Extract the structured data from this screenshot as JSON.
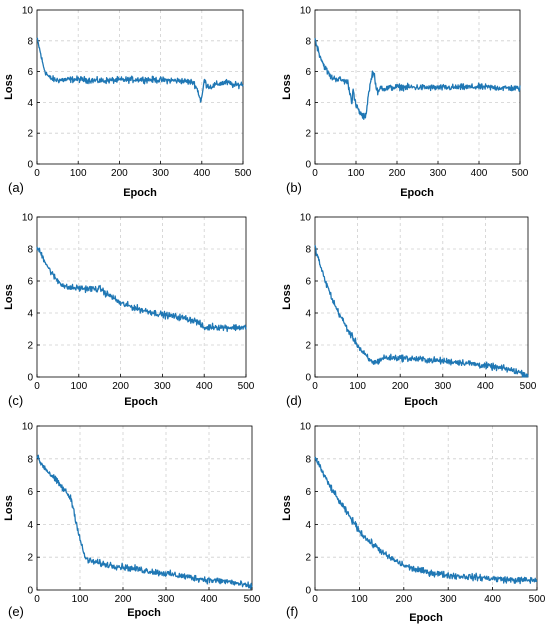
{
  "chart_data": [
    {
      "type": "line",
      "panel_label": "(a)",
      "xlabel": "Epoch",
      "ylabel": "Loss",
      "xlim": [
        0,
        500
      ],
      "ylim": [
        0,
        10
      ],
      "xticks": [
        "0",
        "100",
        "200",
        "300",
        "400",
        "500"
      ],
      "yticks": [
        "0",
        "2",
        "4",
        "6",
        "8",
        "10"
      ],
      "grid": true,
      "color": "#1f77b4",
      "series": [
        {
          "x": [
            0,
            5,
            10,
            15,
            20,
            25,
            30,
            40,
            50,
            100,
            150,
            200,
            250,
            300,
            350,
            380,
            390,
            395,
            398,
            402,
            406,
            410,
            420,
            440,
            460,
            480,
            500
          ],
          "values": [
            8.1,
            7.6,
            7.0,
            6.4,
            6.0,
            5.8,
            5.6,
            5.5,
            5.45,
            5.5,
            5.4,
            5.45,
            5.5,
            5.45,
            5.4,
            5.3,
            4.8,
            4.3,
            4.1,
            4.6,
            5.5,
            5.2,
            5.0,
            5.2,
            5.3,
            5.1,
            5.2
          ]
        }
      ]
    },
    {
      "type": "line",
      "panel_label": "(b)",
      "xlabel": "Epoch",
      "ylabel": "Loss",
      "xlim": [
        0,
        500
      ],
      "ylim": [
        0,
        10
      ],
      "xticks": [
        "0",
        "100",
        "200",
        "300",
        "400",
        "500"
      ],
      "yticks": [
        "0",
        "2",
        "4",
        "6",
        "8",
        "10"
      ],
      "grid": true,
      "color": "#1f77b4",
      "series": [
        {
          "x": [
            0,
            10,
            20,
            30,
            40,
            60,
            80,
            90,
            93,
            96,
            100,
            110,
            120,
            125,
            130,
            140,
            145,
            150,
            155,
            160,
            170,
            200,
            300,
            400,
            500
          ],
          "values": [
            8.1,
            7.2,
            6.5,
            6.0,
            5.6,
            5.5,
            5.3,
            4.0,
            5.0,
            4.2,
            3.8,
            3.3,
            3.0,
            3.3,
            4.5,
            5.9,
            5.8,
            4.8,
            4.6,
            5.0,
            4.9,
            5.0,
            4.95,
            5.0,
            4.9
          ]
        }
      ]
    },
    {
      "type": "line",
      "panel_label": "(c)",
      "xlabel": "Epoch",
      "ylabel": "Loss",
      "xlim": [
        0,
        500
      ],
      "ylim": [
        0,
        10
      ],
      "xticks": [
        "0",
        "100",
        "200",
        "300",
        "400",
        "500"
      ],
      "yticks": [
        "0",
        "2",
        "4",
        "6",
        "8",
        "10"
      ],
      "grid": true,
      "color": "#1f77b4",
      "series": [
        {
          "x": [
            0,
            10,
            20,
            30,
            40,
            50,
            60,
            70,
            100,
            140,
            155,
            160,
            180,
            200,
            250,
            300,
            350,
            380,
            395,
            400,
            420,
            450,
            500
          ],
          "values": [
            8.1,
            7.7,
            7.2,
            6.7,
            6.3,
            6.0,
            5.8,
            5.6,
            5.55,
            5.5,
            5.5,
            5.3,
            5.0,
            4.6,
            4.2,
            3.9,
            3.7,
            3.5,
            3.2,
            3.05,
            3.15,
            3.1,
            3.1
          ]
        }
      ]
    },
    {
      "type": "line",
      "panel_label": "(d)",
      "xlabel": "Epoch",
      "ylabel": "Loss",
      "xlim": [
        0,
        500
      ],
      "ylim": [
        0,
        10
      ],
      "xticks": [
        "0",
        "100",
        "200",
        "300",
        "400",
        "500"
      ],
      "yticks": [
        "0",
        "2",
        "4",
        "6",
        "8",
        "10"
      ],
      "grid": true,
      "color": "#1f77b4",
      "series": [
        {
          "x": [
            0,
            10,
            20,
            30,
            40,
            50,
            60,
            70,
            80,
            90,
            100,
            110,
            120,
            130,
            140,
            150,
            160,
            170,
            200,
            250,
            300,
            350,
            400,
            450,
            480,
            500
          ],
          "values": [
            8.1,
            7.2,
            6.3,
            5.6,
            4.9,
            4.3,
            3.8,
            3.3,
            2.8,
            2.4,
            2.0,
            1.6,
            1.3,
            1.0,
            0.9,
            1.0,
            1.2,
            1.2,
            1.2,
            1.1,
            1.0,
            0.9,
            0.7,
            0.5,
            0.3,
            0.1
          ]
        }
      ]
    },
    {
      "type": "line",
      "panel_label": "(e)",
      "xlabel": "Epoch",
      "ylabel": "Loss",
      "xlim": [
        0,
        500
      ],
      "ylim": [
        0,
        10
      ],
      "xticks": [
        "0",
        "100",
        "200",
        "300",
        "400",
        "500"
      ],
      "yticks": [
        "0",
        "2",
        "4",
        "6",
        "8",
        "10"
      ],
      "grid": true,
      "color": "#1f77b4",
      "series": [
        {
          "x": [
            0,
            10,
            20,
            30,
            40,
            50,
            60,
            70,
            80,
            90,
            100,
            110,
            115,
            120,
            150,
            200,
            250,
            300,
            350,
            400,
            450,
            480,
            500
          ],
          "values": [
            8.1,
            7.7,
            7.4,
            7.1,
            6.8,
            6.5,
            6.2,
            5.9,
            5.5,
            4.3,
            3.1,
            2.1,
            1.9,
            1.8,
            1.6,
            1.4,
            1.2,
            1.0,
            0.8,
            0.6,
            0.5,
            0.3,
            0.2
          ]
        }
      ]
    },
    {
      "type": "line",
      "panel_label": "(f)",
      "xlabel": "Epoch",
      "ylabel": "Loss",
      "xlim": [
        0,
        500
      ],
      "ylim": [
        0,
        10
      ],
      "xticks": [
        "0",
        "100",
        "200",
        "300",
        "400",
        "500"
      ],
      "yticks": [
        "0",
        "2",
        "4",
        "6",
        "8",
        "10"
      ],
      "grid": true,
      "color": "#1f77b4",
      "series": [
        {
          "x": [
            0,
            10,
            20,
            30,
            50,
            70,
            90,
            100,
            120,
            140,
            160,
            180,
            200,
            220,
            250,
            300,
            350,
            400,
            450,
            500
          ],
          "values": [
            8.1,
            7.6,
            7.0,
            6.5,
            5.6,
            4.8,
            4.0,
            3.6,
            3.0,
            2.6,
            2.1,
            1.8,
            1.5,
            1.3,
            1.1,
            0.9,
            0.8,
            0.7,
            0.6,
            0.6
          ]
        }
      ]
    }
  ]
}
